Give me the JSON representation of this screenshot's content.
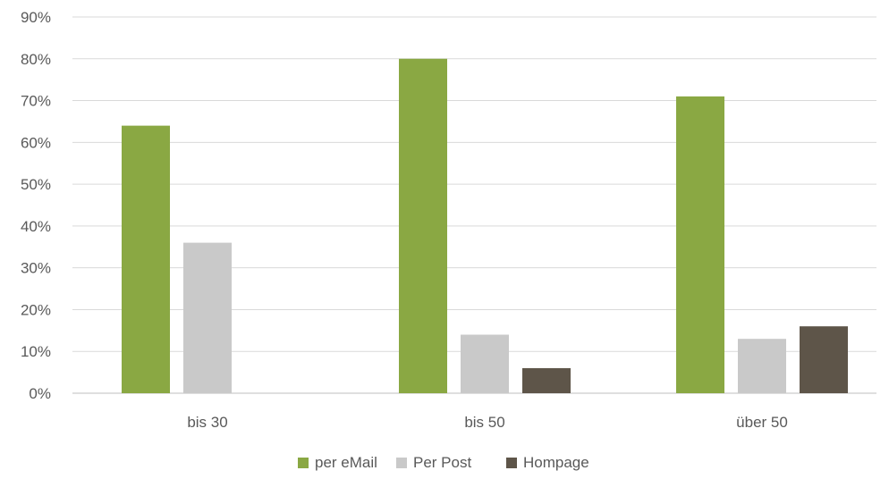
{
  "chart_data": {
    "type": "bar",
    "categories": [
      "bis 30",
      "bis 50",
      "über 50"
    ],
    "series": [
      {
        "name": "per eMail",
        "color": "#8aa843",
        "values": [
          64,
          80,
          71
        ]
      },
      {
        "name": "Per Post",
        "color": "#c9c9c9",
        "values": [
          36,
          14,
          13
        ]
      },
      {
        "name": "Hompage",
        "color": "#5e5549",
        "values": [
          0,
          6,
          16
        ]
      }
    ],
    "y_ticks": [
      "0%",
      "10%",
      "20%",
      "30%",
      "40%",
      "50%",
      "60%",
      "70%",
      "80%",
      "90%"
    ],
    "ylim": [
      0,
      90
    ],
    "y_unit": "%",
    "grid": true,
    "legend_position": "bottom",
    "title": "",
    "xlabel": "",
    "ylabel": ""
  }
}
